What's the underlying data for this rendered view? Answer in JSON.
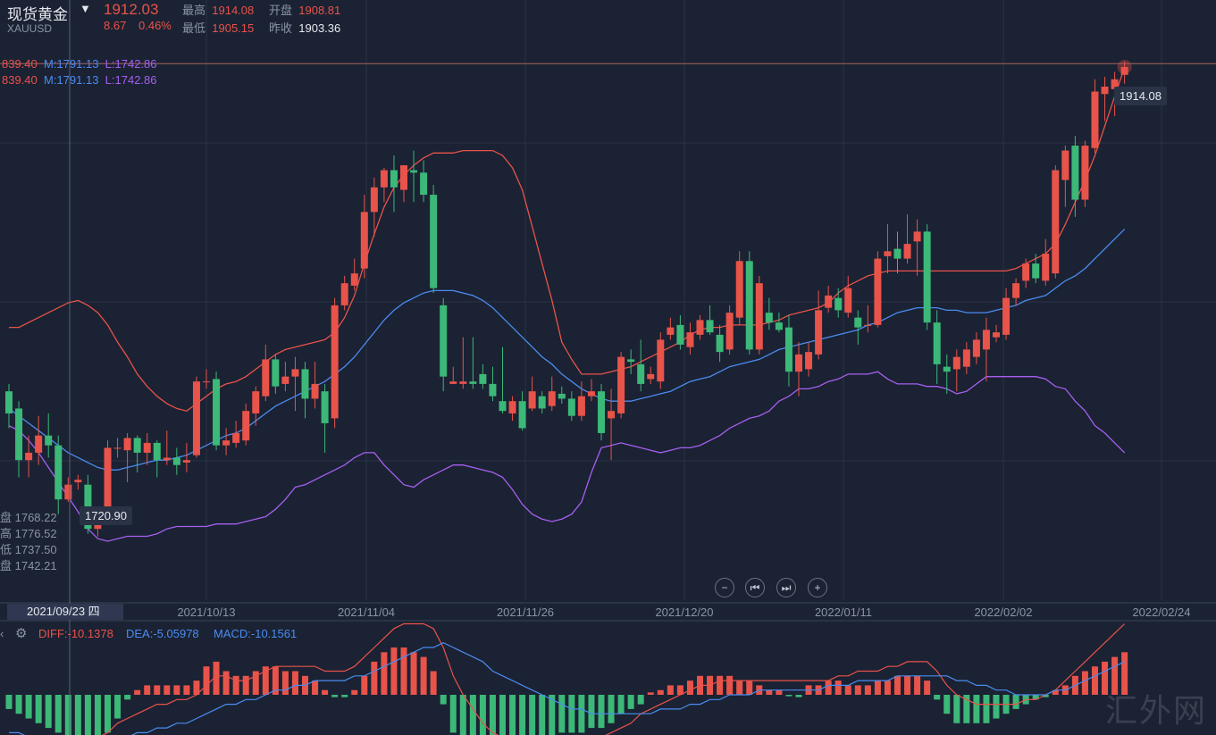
{
  "header": {
    "symbol_name": "现货黄金",
    "symbol_code": "XAUUSD",
    "last_price": "1912.03",
    "change": "8.67",
    "change_pct": "0.46%",
    "high_label": "最高",
    "high_value": "1914.08",
    "open_label": "开盘",
    "open_value": "1908.81",
    "low_label": "最低",
    "low_value": "1905.15",
    "prev_close_label": "昨收",
    "prev_close_value": "1903.36"
  },
  "boll_legend": [
    {
      "upper": "839.40",
      "mid": "M:1791.13",
      "low": "L:1742.86"
    },
    {
      "upper": "839.40",
      "mid": "M:1791.13",
      "low": "L:1742.86"
    }
  ],
  "crosshair": {
    "date": "2021/09/23 四",
    "open": "盘 1768.22",
    "high": "高 1776.52",
    "low": "低 1737.50",
    "close": "盘 1742.21"
  },
  "macd_legend": {
    "diff": "DIFF:-10.1378",
    "dea": "DEA:-5.05978",
    "macd": "MACD:-10.1561"
  },
  "controls": {
    "zoom_out": "−",
    "prev": "⏮",
    "next": "⏭",
    "zoom_in": "+"
  },
  "watermark": "汇外网",
  "colors": {
    "up": "#e8534a",
    "down": "#3cb878",
    "mid": "#4a8cf0",
    "upper_band": "#e8534a",
    "lower_band": "#a65ff0",
    "background": "#1b2233",
    "grid": "#2b3346"
  },
  "chart_data": {
    "type": "candlestick",
    "x_tick_labels": [
      "2021/10/13",
      "2021/11/04",
      "2021/11/26",
      "2021/12/20",
      "2022/01/11",
      "2022/02/02",
      "2022/02/24"
    ],
    "ylim": [
      1695,
      1932
    ],
    "max_label": "1914.08",
    "min_label": "1720.90",
    "candles": [
      {
        "o": 1780,
        "c": 1771,
        "h": 1783,
        "l": 1765
      },
      {
        "o": 1773,
        "c": 1752,
        "h": 1776,
        "l": 1745
      },
      {
        "o": 1752,
        "c": 1755,
        "h": 1762,
        "l": 1745
      },
      {
        "o": 1755,
        "c": 1762,
        "h": 1770,
        "l": 1750
      },
      {
        "o": 1762,
        "c": 1758,
        "h": 1771,
        "l": 1753
      },
      {
        "o": 1758,
        "c": 1736,
        "h": 1762,
        "l": 1730
      },
      {
        "o": 1736,
        "c": 1742,
        "h": 1745,
        "l": 1735
      },
      {
        "o": 1743,
        "c": 1744,
        "h": 1746,
        "l": 1740
      },
      {
        "o": 1742,
        "c": 1724,
        "h": 1746,
        "l": 1722
      },
      {
        "o": 1724,
        "c": 1728,
        "h": 1731,
        "l": 1720.9
      },
      {
        "o": 1728,
        "c": 1757,
        "h": 1760,
        "l": 1726
      },
      {
        "o": 1757,
        "c": 1757,
        "h": 1761,
        "l": 1753
      },
      {
        "o": 1756,
        "c": 1761,
        "h": 1763,
        "l": 1743
      },
      {
        "o": 1761,
        "c": 1755,
        "h": 1762,
        "l": 1747
      },
      {
        "o": 1755,
        "c": 1759,
        "h": 1763,
        "l": 1750
      },
      {
        "o": 1759,
        "c": 1752,
        "h": 1760,
        "l": 1745
      },
      {
        "o": 1752,
        "c": 1753,
        "h": 1764,
        "l": 1750
      },
      {
        "o": 1753,
        "c": 1750,
        "h": 1757,
        "l": 1746
      },
      {
        "o": 1751,
        "c": 1752,
        "h": 1759,
        "l": 1747
      },
      {
        "o": 1754,
        "c": 1784,
        "h": 1786,
        "l": 1753
      },
      {
        "o": 1784,
        "c": 1784,
        "h": 1789,
        "l": 1781
      },
      {
        "o": 1785,
        "c": 1758,
        "h": 1788,
        "l": 1756
      },
      {
        "o": 1758,
        "c": 1760,
        "h": 1765,
        "l": 1754
      },
      {
        "o": 1759,
        "c": 1763,
        "h": 1768,
        "l": 1757
      },
      {
        "o": 1760,
        "c": 1772,
        "h": 1775,
        "l": 1758
      },
      {
        "o": 1771,
        "c": 1780,
        "h": 1782,
        "l": 1766
      },
      {
        "o": 1778,
        "c": 1793,
        "h": 1799,
        "l": 1776
      },
      {
        "o": 1793,
        "c": 1782,
        "h": 1795,
        "l": 1779
      },
      {
        "o": 1783,
        "c": 1786,
        "h": 1792,
        "l": 1780
      },
      {
        "o": 1786,
        "c": 1789,
        "h": 1794,
        "l": 1772
      },
      {
        "o": 1789,
        "c": 1777,
        "h": 1792,
        "l": 1769
      },
      {
        "o": 1777,
        "c": 1783,
        "h": 1792,
        "l": 1773
      },
      {
        "o": 1780,
        "c": 1767,
        "h": 1783,
        "l": 1755
      },
      {
        "o": 1769,
        "c": 1815,
        "h": 1818,
        "l": 1765
      },
      {
        "o": 1815,
        "c": 1824,
        "h": 1827,
        "l": 1813
      },
      {
        "o": 1823,
        "c": 1828,
        "h": 1834,
        "l": 1821
      },
      {
        "o": 1830,
        "c": 1853,
        "h": 1860,
        "l": 1826
      },
      {
        "o": 1853,
        "c": 1863,
        "h": 1867,
        "l": 1843
      },
      {
        "o": 1863,
        "c": 1870,
        "h": 1871,
        "l": 1857
      },
      {
        "o": 1870,
        "c": 1863,
        "h": 1876,
        "l": 1853
      },
      {
        "o": 1862,
        "c": 1872,
        "h": 1872,
        "l": 1857
      },
      {
        "o": 1870,
        "c": 1869,
        "h": 1878,
        "l": 1857
      },
      {
        "o": 1869,
        "c": 1860,
        "h": 1874,
        "l": 1857
      },
      {
        "o": 1860,
        "c": 1822,
        "h": 1864,
        "l": 1820
      },
      {
        "o": 1815,
        "c": 1786,
        "h": 1818,
        "l": 1780
      },
      {
        "o": 1783,
        "c": 1784,
        "h": 1790,
        "l": 1783
      },
      {
        "o": 1783,
        "c": 1784,
        "h": 1802,
        "l": 1781
      },
      {
        "o": 1784,
        "c": 1783,
        "h": 1802,
        "l": 1781
      },
      {
        "o": 1787,
        "c": 1783,
        "h": 1791,
        "l": 1781
      },
      {
        "o": 1783,
        "c": 1778,
        "h": 1790,
        "l": 1776
      },
      {
        "o": 1776,
        "c": 1772,
        "h": 1798,
        "l": 1771
      },
      {
        "o": 1771,
        "c": 1776,
        "h": 1778,
        "l": 1768
      },
      {
        "o": 1776,
        "c": 1765,
        "h": 1780,
        "l": 1764
      },
      {
        "o": 1773,
        "c": 1780,
        "h": 1786,
        "l": 1772
      },
      {
        "o": 1778,
        "c": 1773,
        "h": 1780,
        "l": 1771
      },
      {
        "o": 1774,
        "c": 1780,
        "h": 1786,
        "l": 1772
      },
      {
        "o": 1779,
        "c": 1777,
        "h": 1782,
        "l": 1775
      },
      {
        "o": 1777,
        "c": 1770,
        "h": 1780,
        "l": 1768
      },
      {
        "o": 1770,
        "c": 1778,
        "h": 1784,
        "l": 1768
      },
      {
        "o": 1778,
        "c": 1780,
        "h": 1785,
        "l": 1776
      },
      {
        "o": 1780,
        "c": 1763,
        "h": 1783,
        "l": 1760
      },
      {
        "o": 1769,
        "c": 1772,
        "h": 1781,
        "l": 1752
      },
      {
        "o": 1771,
        "c": 1794,
        "h": 1796,
        "l": 1769
      },
      {
        "o": 1793,
        "c": 1792,
        "h": 1797,
        "l": 1787
      },
      {
        "o": 1791,
        "c": 1783,
        "h": 1801,
        "l": 1780
      },
      {
        "o": 1785,
        "c": 1787,
        "h": 1790,
        "l": 1783
      },
      {
        "o": 1784,
        "c": 1801,
        "h": 1804,
        "l": 1781
      },
      {
        "o": 1803,
        "c": 1806,
        "h": 1810,
        "l": 1801
      },
      {
        "o": 1807,
        "c": 1799,
        "h": 1811,
        "l": 1797
      },
      {
        "o": 1798,
        "c": 1804,
        "h": 1808,
        "l": 1795
      },
      {
        "o": 1803,
        "c": 1809,
        "h": 1811,
        "l": 1801
      },
      {
        "o": 1809,
        "c": 1804,
        "h": 1815,
        "l": 1803
      },
      {
        "o": 1803,
        "c": 1796,
        "h": 1807,
        "l": 1792
      },
      {
        "o": 1797,
        "c": 1812,
        "h": 1815,
        "l": 1795
      },
      {
        "o": 1810,
        "c": 1833,
        "h": 1837,
        "l": 1807
      },
      {
        "o": 1833,
        "c": 1797,
        "h": 1837,
        "l": 1795
      },
      {
        "o": 1797,
        "c": 1824,
        "h": 1827,
        "l": 1795
      },
      {
        "o": 1812,
        "c": 1808,
        "h": 1818,
        "l": 1805
      },
      {
        "o": 1808,
        "c": 1805,
        "h": 1812,
        "l": 1804
      },
      {
        "o": 1806,
        "c": 1788,
        "h": 1811,
        "l": 1782
      },
      {
        "o": 1788,
        "c": 1795,
        "h": 1800,
        "l": 1778
      },
      {
        "o": 1789,
        "c": 1796,
        "h": 1800,
        "l": 1786
      },
      {
        "o": 1795,
        "c": 1813,
        "h": 1821,
        "l": 1793
      },
      {
        "o": 1814,
        "c": 1819,
        "h": 1823,
        "l": 1812
      },
      {
        "o": 1818,
        "c": 1813,
        "h": 1822,
        "l": 1810
      },
      {
        "o": 1812,
        "c": 1822,
        "h": 1827,
        "l": 1810
      },
      {
        "o": 1810,
        "c": 1806,
        "h": 1813,
        "l": 1799
      },
      {
        "o": 1807,
        "c": 1807,
        "h": 1815,
        "l": 1804
      },
      {
        "o": 1807,
        "c": 1834,
        "h": 1837,
        "l": 1806
      },
      {
        "o": 1835,
        "c": 1837,
        "h": 1848,
        "l": 1828
      },
      {
        "o": 1838,
        "c": 1834,
        "h": 1845,
        "l": 1828
      },
      {
        "o": 1834,
        "c": 1840,
        "h": 1852,
        "l": 1832
      },
      {
        "o": 1841,
        "c": 1845,
        "h": 1850,
        "l": 1827
      },
      {
        "o": 1845,
        "c": 1808,
        "h": 1848,
        "l": 1805
      },
      {
        "o": 1808,
        "c": 1791,
        "h": 1813,
        "l": 1783
      },
      {
        "o": 1790,
        "c": 1788,
        "h": 1795,
        "l": 1779
      },
      {
        "o": 1789,
        "c": 1794,
        "h": 1797,
        "l": 1780
      },
      {
        "o": 1790,
        "c": 1797,
        "h": 1800,
        "l": 1787
      },
      {
        "o": 1794,
        "c": 1801,
        "h": 1804,
        "l": 1791
      },
      {
        "o": 1797,
        "c": 1805,
        "h": 1810,
        "l": 1784
      },
      {
        "o": 1802,
        "c": 1804,
        "h": 1807,
        "l": 1800
      },
      {
        "o": 1803,
        "c": 1818,
        "h": 1822,
        "l": 1801
      },
      {
        "o": 1818,
        "c": 1824,
        "h": 1826,
        "l": 1815
      },
      {
        "o": 1825,
        "c": 1832,
        "h": 1834,
        "l": 1822
      },
      {
        "o": 1832,
        "c": 1826,
        "h": 1836,
        "l": 1824
      },
      {
        "o": 1825,
        "c": 1836,
        "h": 1842,
        "l": 1823
      },
      {
        "o": 1828,
        "c": 1870,
        "h": 1872,
        "l": 1826
      },
      {
        "o": 1866,
        "c": 1878,
        "h": 1880,
        "l": 1855
      },
      {
        "o": 1880,
        "c": 1858,
        "h": 1884,
        "l": 1851
      },
      {
        "o": 1858,
        "c": 1880,
        "h": 1882,
        "l": 1855
      },
      {
        "o": 1879,
        "c": 1902,
        "h": 1907,
        "l": 1877
      },
      {
        "o": 1901,
        "c": 1904,
        "h": 1908,
        "l": 1890
      },
      {
        "o": 1903,
        "c": 1907,
        "h": 1910,
        "l": 1892
      },
      {
        "o": 1908.81,
        "c": 1912.03,
        "h": 1914.08,
        "l": 1905.15
      }
    ],
    "boll_mid": [
      1773,
      1770,
      1767,
      1764,
      1761,
      1758,
      1755,
      1753,
      1751,
      1749,
      1748,
      1748,
      1749,
      1750,
      1751,
      1752,
      1752,
      1753,
      1754,
      1756,
      1758,
      1760,
      1762,
      1763,
      1765,
      1768,
      1771,
      1774,
      1776,
      1778,
      1780,
      1782,
      1784,
      1787,
      1790,
      1794,
      1799,
      1804,
      1809,
      1813,
      1816,
      1818,
      1820,
      1821,
      1821,
      1821,
      1820,
      1819,
      1817,
      1814,
      1810,
      1806,
      1802,
      1798,
      1794,
      1791,
      1787,
      1784,
      1781,
      1779,
      1777,
      1776,
      1776,
      1776,
      1777,
      1778,
      1779,
      1780,
      1782,
      1784,
      1785,
      1786,
      1788,
      1790,
      1791,
      1792,
      1793,
      1795,
      1797,
      1798,
      1799,
      1800,
      1801,
      1802,
      1803,
      1804,
      1805,
      1807,
      1808,
      1810,
      1812,
      1813,
      1814,
      1814,
      1814,
      1813,
      1813,
      1812,
      1812,
      1812,
      1813,
      1814,
      1815,
      1817,
      1818,
      1819,
      1822,
      1825,
      1827,
      1830,
      1834,
      1838,
      1842,
      1846
    ],
    "boll_upper": [
      1806,
      1806,
      1808,
      1810,
      1812,
      1814,
      1816,
      1817,
      1815,
      1812,
      1807,
      1800,
      1794,
      1787,
      1782,
      1778,
      1775,
      1773,
      1772,
      1775,
      1778,
      1781,
      1783,
      1784,
      1786,
      1789,
      1792,
      1795,
      1797,
      1798,
      1799,
      1800,
      1801,
      1804,
      1810,
      1819,
      1832,
      1844,
      1855,
      1863,
      1868,
      1872,
      1875,
      1877,
      1877,
      1877,
      1878,
      1878,
      1878,
      1878,
      1876,
      1871,
      1862,
      1847,
      1832,
      1817,
      1800,
      1793,
      1787,
      1787,
      1787,
      1788,
      1789,
      1790,
      1792,
      1794,
      1796,
      1798,
      1800,
      1803,
      1805,
      1806,
      1806,
      1807,
      1807,
      1807,
      1807,
      1808,
      1809,
      1811,
      1812,
      1813,
      1814,
      1816,
      1820,
      1823,
      1825,
      1827,
      1828,
      1829,
      1829,
      1829,
      1829,
      1829,
      1829,
      1829,
      1829,
      1829,
      1829,
      1829,
      1829,
      1829,
      1830,
      1832,
      1834,
      1836,
      1840,
      1848,
      1857,
      1866,
      1876,
      1888,
      1900,
      1912
    ],
    "boll_lower": [
      1766,
      1764,
      1760,
      1755,
      1749,
      1743,
      1737,
      1731,
      1724,
      1720,
      1719,
      1720,
      1721,
      1721,
      1721,
      1722,
      1724,
      1725,
      1725,
      1725,
      1725,
      1726,
      1726,
      1726,
      1727,
      1728,
      1729,
      1732,
      1736,
      1741,
      1742,
      1744,
      1746,
      1748,
      1750,
      1753,
      1755,
      1755,
      1750,
      1746,
      1742,
      1741,
      1744,
      1746,
      1748,
      1750,
      1750,
      1749,
      1748,
      1747,
      1745,
      1740,
      1734,
      1730,
      1728,
      1727,
      1728,
      1730,
      1735,
      1747,
      1757,
      1758,
      1759,
      1758,
      1757,
      1756,
      1755,
      1756,
      1757,
      1757,
      1758,
      1760,
      1762,
      1765,
      1767,
      1769,
      1770,
      1772,
      1776,
      1778,
      1781,
      1781,
      1782,
      1784,
      1785,
      1787,
      1787,
      1787,
      1788,
      1785,
      1783,
      1783,
      1783,
      1782,
      1782,
      1781,
      1779,
      1780,
      1783,
      1786,
      1786,
      1786,
      1786,
      1786,
      1786,
      1785,
      1782,
      1781,
      1776,
      1772,
      1766,
      1763,
      1759,
      1755
    ],
    "macd_hist": [
      -3,
      -4,
      -5,
      -6,
      -7,
      -8,
      -9,
      -9,
      -10,
      -10.2,
      -8,
      -5,
      -1,
      1,
      2,
      2,
      2,
      2,
      2,
      3,
      6,
      7,
      5,
      4,
      4,
      5,
      6,
      6,
      5,
      5,
      4,
      3,
      1,
      -0.5,
      -0.5,
      1,
      4,
      7,
      9,
      10,
      10,
      9,
      8,
      5,
      -2,
      -8,
      -10,
      -11,
      -11,
      -11,
      -11,
      -11,
      -10,
      -9,
      -9,
      -9,
      -8,
      -8,
      -8,
      -7,
      -7,
      -6,
      -4,
      -3,
      -2,
      0.5,
      1,
      2,
      2,
      3,
      4,
      4,
      4,
      4,
      3,
      3,
      2,
      1,
      1,
      -0.3,
      -0.5,
      2,
      2,
      3,
      3,
      2,
      2,
      2,
      3,
      3,
      4,
      4,
      4,
      3,
      -1,
      -4,
      -6,
      -6,
      -6,
      -6,
      -5,
      -4,
      -3,
      -2,
      -1,
      -0.5,
      1,
      2,
      4,
      5,
      6,
      7,
      8,
      9
    ],
    "macd_diff": [
      -11,
      -12,
      -12,
      -13,
      -13,
      -12,
      -11,
      -10,
      -9,
      -9,
      -8,
      -6,
      -5,
      -4,
      -3,
      -2,
      -2,
      -1,
      -1,
      0,
      2,
      4,
      4,
      3,
      3,
      4,
      5,
      6,
      6,
      6,
      6,
      6,
      5,
      5,
      5,
      6,
      8,
      10,
      12,
      14,
      15,
      15,
      15,
      14,
      10,
      4,
      0,
      -3,
      -6,
      -8,
      -9,
      -10,
      -11,
      -11,
      -11,
      -11,
      -11,
      -10,
      -10,
      -9,
      -9,
      -8,
      -7,
      -6,
      -4,
      -3,
      -2,
      -1,
      0,
      1,
      2,
      2,
      3,
      3,
      3,
      3,
      3,
      3,
      3,
      3,
      3,
      3,
      3,
      3,
      4,
      4,
      5,
      5,
      5,
      6,
      6,
      7,
      7,
      7,
      5,
      2,
      0,
      -1,
      -2,
      -2,
      -2,
      -2,
      -2,
      -1,
      -1,
      0,
      1,
      3,
      5,
      7,
      9,
      11,
      13,
      15
    ],
    "macd_dea": [
      -8,
      -8,
      -9,
      -9,
      -9,
      -10,
      -10,
      -10,
      -10,
      -10,
      -10,
      -9,
      -9,
      -8,
      -8,
      -7,
      -7,
      -6,
      -6,
      -5,
      -4,
      -3,
      -2,
      -2,
      -1,
      -1,
      0,
      1,
      1,
      2,
      2,
      3,
      3,
      3,
      3,
      4,
      4,
      5,
      6,
      7,
      8,
      9,
      10,
      10,
      11,
      10,
      9,
      8,
      7,
      5,
      4,
      3,
      2,
      1,
      0,
      -1,
      -2,
      -3,
      -3,
      -4,
      -4,
      -4,
      -4,
      -4,
      -4,
      -4,
      -3,
      -3,
      -3,
      -2,
      -2,
      -1,
      -1,
      0,
      0,
      0,
      1,
      1,
      1,
      1,
      1,
      1,
      1,
      2,
      2,
      2,
      3,
      3,
      3,
      3,
      4,
      4,
      4,
      4,
      4,
      4,
      3,
      3,
      2,
      2,
      1,
      1,
      0,
      0,
      0,
      0,
      1,
      1,
      2,
      3,
      4,
      5,
      6,
      7
    ]
  }
}
